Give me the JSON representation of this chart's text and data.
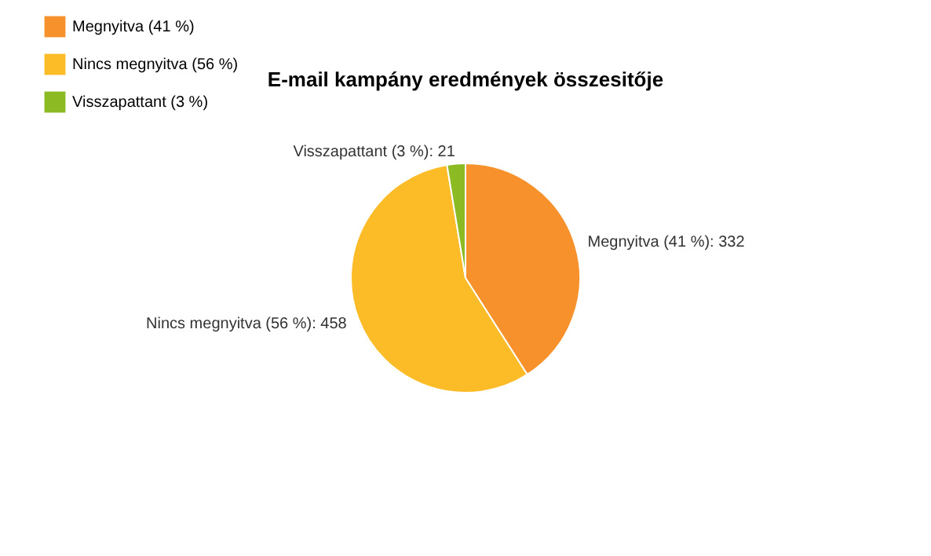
{
  "chart_data": {
    "type": "pie",
    "title": "E-mail kampány eredmények összesitője",
    "categories": [
      "Megnyitva (41 %)",
      "Nincs megnyitva (56 %)",
      "Visszapattant (3 %)"
    ],
    "values": [
      332,
      458,
      21
    ],
    "colors": [
      "#f7912b",
      "#fcbc27",
      "#8cba23"
    ],
    "value_labels": [
      "Megnyitva (41 %): 332",
      "Nincs megnyitva (56 %): 458",
      "Visszapattant (3 %): 21"
    ],
    "legend": "top left"
  }
}
